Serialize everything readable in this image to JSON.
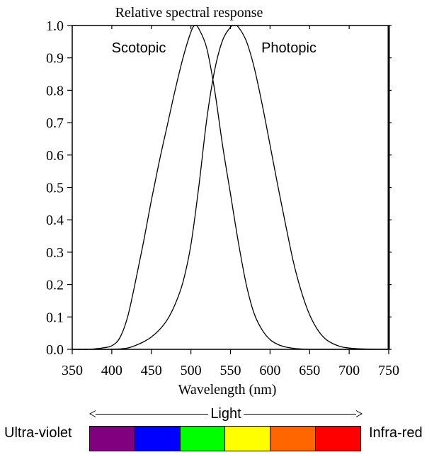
{
  "chart_data": {
    "type": "line",
    "title": "Relative spectral response",
    "xlabel": "Wavelength (nm)",
    "ylabel": "",
    "xlim": [
      350,
      750
    ],
    "ylim": [
      0,
      1.0
    ],
    "xticks": [
      350,
      400,
      450,
      500,
      550,
      600,
      650,
      700,
      750
    ],
    "yticks": [
      "0.0",
      "0.1",
      "0.2",
      "0.3",
      "0.4",
      "0.5",
      "0.6",
      "0.7",
      "0.8",
      "0.9",
      "1.0"
    ],
    "grid": false,
    "series": [
      {
        "name": "Scotopic",
        "color": "#000000",
        "x": [
          350,
          360,
          370,
          380,
          390,
          400,
          410,
          420,
          430,
          440,
          450,
          460,
          470,
          480,
          490,
          500,
          505,
          510,
          520,
          530,
          540,
          550,
          560,
          570,
          580,
          590,
          600,
          610,
          620,
          630,
          640,
          650,
          660,
          670,
          680,
          690,
          700,
          750
        ],
        "values": [
          0.0,
          0.0,
          0.0,
          0.002,
          0.005,
          0.011,
          0.035,
          0.1,
          0.21,
          0.33,
          0.46,
          0.58,
          0.69,
          0.8,
          0.9,
          0.98,
          1.0,
          0.99,
          0.93,
          0.8,
          0.63,
          0.48,
          0.33,
          0.2,
          0.11,
          0.06,
          0.03,
          0.015,
          0.007,
          0.003,
          0.001,
          0.0,
          0.0,
          0.0,
          0.0,
          0.0,
          0.0,
          0.0
        ]
      },
      {
        "name": "Photopic",
        "color": "#000000",
        "x": [
          350,
          380,
          390,
          400,
          410,
          420,
          430,
          440,
          450,
          460,
          470,
          480,
          490,
          500,
          510,
          520,
          530,
          540,
          550,
          555,
          560,
          570,
          580,
          590,
          600,
          610,
          620,
          630,
          640,
          650,
          660,
          670,
          680,
          690,
          700,
          710,
          720,
          750
        ],
        "values": [
          0.0,
          0.0,
          0.0,
          0.0004,
          0.0012,
          0.004,
          0.012,
          0.023,
          0.038,
          0.06,
          0.091,
          0.139,
          0.208,
          0.323,
          0.503,
          0.71,
          0.862,
          0.954,
          0.995,
          1.0,
          0.995,
          0.952,
          0.87,
          0.757,
          0.631,
          0.503,
          0.381,
          0.265,
          0.175,
          0.107,
          0.061,
          0.032,
          0.017,
          0.008,
          0.004,
          0.002,
          0.001,
          0.0
        ]
      }
    ],
    "annotations": [
      "Scotopic",
      "Photopic"
    ]
  },
  "spectrum": {
    "label": "Light",
    "left_label": "Ultra-violet",
    "right_label": "Infra-red",
    "bands": [
      "#800080",
      "#0000ff",
      "#00ff00",
      "#ffff00",
      "#ff6600",
      "#ff0000"
    ]
  }
}
